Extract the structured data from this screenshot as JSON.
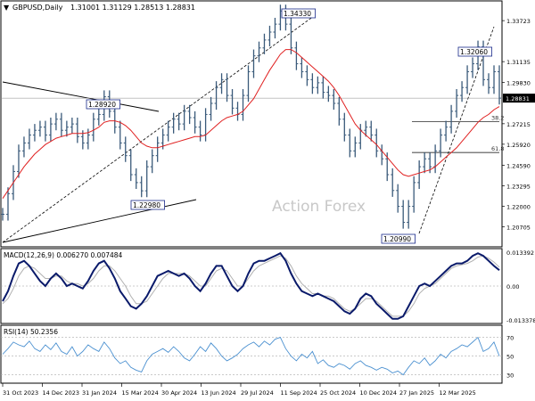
{
  "header": {
    "symbol": "GBPUSD,Daily",
    "ohlc": "1.31001 1.31129 1.28513 1.28831"
  },
  "watermark": "Action Forex",
  "chart_data": [
    {
      "type": "line",
      "panel": "price",
      "ylim": [
        1.195,
        1.348
      ],
      "y_ticks": [
        "1.33723",
        "1.31135",
        "1.29830",
        "1.27215",
        "1.25920",
        "1.24590",
        "1.23295",
        "1.22000",
        "1.20705"
      ],
      "y_tick_values": [
        1.33723,
        1.31135,
        1.2983,
        1.27215,
        1.2592,
        1.2459,
        1.23295,
        1.22,
        1.20705
      ],
      "x_ticks": [
        "31 Oct 2023",
        "14 Dec 2023",
        "31 Jan 2024",
        "15 Mar 2024",
        "30 Apr 2024",
        "13 Jun 2024",
        "29 Jul 2024",
        "11 Sep 2024",
        "25 Oct 2024",
        "10 Dec 2024",
        "27 Jan 2025",
        "12 Mar 2025"
      ],
      "close": [
        1.215,
        1.228,
        1.242,
        1.255,
        1.26,
        1.265,
        1.268,
        1.27,
        1.265,
        1.272,
        1.275,
        1.268,
        1.27,
        1.272,
        1.264,
        1.26,
        1.265,
        1.275,
        1.278,
        1.2892,
        1.28,
        1.27,
        1.26,
        1.252,
        1.24,
        1.235,
        1.2298,
        1.245,
        1.252,
        1.26,
        1.265,
        1.27,
        1.275,
        1.272,
        1.28,
        1.276,
        1.27,
        1.265,
        1.278,
        1.285,
        1.295,
        1.3,
        1.29,
        1.282,
        1.278,
        1.29,
        1.305,
        1.315,
        1.32,
        1.325,
        1.33,
        1.335,
        1.3433,
        1.335,
        1.32,
        1.31,
        1.305,
        1.3,
        1.295,
        1.298,
        1.292,
        1.29,
        1.285,
        1.275,
        1.265,
        1.255,
        1.26,
        1.268,
        1.27,
        1.265,
        1.255,
        1.25,
        1.24,
        1.23,
        1.22,
        1.2099,
        1.22,
        1.235,
        1.245,
        1.25,
        1.245,
        1.255,
        1.265,
        1.27,
        1.28,
        1.29,
        1.295,
        1.305,
        1.31,
        1.3206,
        1.3,
        1.295,
        1.305,
        1.2883
      ],
      "ma": [
        1.225,
        1.23,
        1.235,
        1.24,
        1.245,
        1.249,
        1.253,
        1.256,
        1.259,
        1.261,
        1.263,
        1.264,
        1.265,
        1.266,
        1.266,
        1.266,
        1.2665,
        1.268,
        1.27,
        1.273,
        1.274,
        1.274,
        1.273,
        1.271,
        1.268,
        1.264,
        1.26,
        1.258,
        1.257,
        1.257,
        1.258,
        1.259,
        1.26,
        1.261,
        1.262,
        1.263,
        1.264,
        1.264,
        1.265,
        1.268,
        1.271,
        1.274,
        1.276,
        1.277,
        1.278,
        1.28,
        1.284,
        1.288,
        1.294,
        1.3,
        1.306,
        1.311,
        1.316,
        1.319,
        1.319,
        1.317,
        1.314,
        1.311,
        1.308,
        1.305,
        1.302,
        1.299,
        1.295,
        1.29,
        1.284,
        1.278,
        1.272,
        1.268,
        1.265,
        1.262,
        1.259,
        1.255,
        1.251,
        1.247,
        1.243,
        1.24,
        1.239,
        1.24,
        1.241,
        1.242,
        1.243,
        1.245,
        1.248,
        1.251,
        1.254,
        1.257,
        1.261,
        1.265,
        1.269,
        1.273,
        1.276,
        1.278,
        1.281,
        1.283
      ],
      "annotations": [
        {
          "label": "1.34330",
          "value": 1.3433
        },
        {
          "label": "1.32060",
          "value": 1.3206
        },
        {
          "label": "1.28920",
          "value": 1.2892
        },
        {
          "label": "1.22980",
          "value": 1.2298
        },
        {
          "label": "1.20990",
          "value": 1.2099
        }
      ],
      "current_price_label": "1.28831",
      "current_price": 1.28831,
      "fib_levels": [
        {
          "label": "38.2",
          "value": 1.2735
        },
        {
          "label": "61.8",
          "value": 1.254
        }
      ]
    },
    {
      "type": "line",
      "panel": "macd",
      "title": "MACD(12,26,9) 0.006270 0.007484",
      "ylim": [
        -0.0145,
        0.0145
      ],
      "y_ticks": [
        "0.013392",
        "0.00",
        "-0.013378"
      ],
      "y_tick_values": [
        0.013392,
        0.0,
        -0.013378
      ],
      "macd": [
        -0.006,
        -0.002,
        0.004,
        0.009,
        0.01,
        0.008,
        0.005,
        0.002,
        0.0,
        0.003,
        0.005,
        0.003,
        0.0,
        0.001,
        0.0,
        -0.001,
        0.002,
        0.006,
        0.009,
        0.01,
        0.007,
        0.003,
        -0.002,
        -0.005,
        -0.008,
        -0.009,
        -0.007,
        -0.004,
        0.0,
        0.004,
        0.005,
        0.006,
        0.005,
        0.004,
        0.005,
        0.003,
        0.0,
        -0.002,
        0.001,
        0.005,
        0.008,
        0.008,
        0.004,
        0.0,
        -0.002,
        0.0,
        0.005,
        0.009,
        0.01,
        0.01,
        0.011,
        0.012,
        0.013,
        0.01,
        0.005,
        0.001,
        -0.002,
        -0.003,
        -0.004,
        -0.003,
        -0.004,
        -0.005,
        -0.006,
        -0.008,
        -0.01,
        -0.011,
        -0.009,
        -0.005,
        -0.003,
        -0.004,
        -0.007,
        -0.009,
        -0.011,
        -0.013,
        -0.013,
        -0.012,
        -0.008,
        -0.004,
        0.0,
        0.001,
        0.0,
        0.002,
        0.004,
        0.006,
        0.008,
        0.009,
        0.009,
        0.01,
        0.012,
        0.013,
        0.012,
        0.01,
        0.008,
        0.0063
      ],
      "signal": [
        -0.007,
        -0.005,
        -0.001,
        0.004,
        0.007,
        0.008,
        0.007,
        0.005,
        0.003,
        0.003,
        0.004,
        0.004,
        0.002,
        0.001,
        0.001,
        0.0,
        0.001,
        0.003,
        0.006,
        0.008,
        0.008,
        0.006,
        0.003,
        0.0,
        -0.004,
        -0.007,
        -0.007,
        -0.006,
        -0.003,
        0.0,
        0.003,
        0.005,
        0.005,
        0.005,
        0.005,
        0.004,
        0.002,
        0.0,
        0.0,
        0.003,
        0.006,
        0.007,
        0.006,
        0.003,
        0.0,
        0.0,
        0.003,
        0.006,
        0.008,
        0.009,
        0.01,
        0.011,
        0.012,
        0.011,
        0.008,
        0.004,
        0.001,
        -0.001,
        -0.003,
        -0.003,
        -0.004,
        -0.004,
        -0.005,
        -0.007,
        -0.009,
        -0.01,
        -0.009,
        -0.007,
        -0.005,
        -0.005,
        -0.006,
        -0.008,
        -0.01,
        -0.012,
        -0.012,
        -0.012,
        -0.01,
        -0.007,
        -0.003,
        -0.001,
        0.0,
        0.001,
        0.003,
        0.005,
        0.007,
        0.008,
        0.0085,
        0.009,
        0.01,
        0.0115,
        0.012,
        0.011,
        0.0095,
        0.0075
      ]
    },
    {
      "type": "line",
      "panel": "rsi",
      "title": "RSI(14) 50.2356",
      "ylim": [
        22,
        82
      ],
      "y_ticks": [
        "70",
        "50",
        "30"
      ],
      "y_tick_values": [
        70,
        50,
        30
      ],
      "rsi": [
        52,
        58,
        65,
        62,
        60,
        66,
        58,
        55,
        62,
        57,
        64,
        55,
        52,
        60,
        50,
        55,
        62,
        58,
        55,
        65,
        58,
        48,
        42,
        45,
        38,
        35,
        33,
        45,
        52,
        55,
        58,
        54,
        60,
        55,
        48,
        45,
        52,
        60,
        55,
        64,
        58,
        50,
        45,
        48,
        52,
        58,
        62,
        65,
        60,
        66,
        62,
        68,
        70,
        58,
        50,
        45,
        52,
        48,
        55,
        42,
        46,
        40,
        38,
        42,
        40,
        36,
        42,
        45,
        40,
        38,
        35,
        38,
        36,
        32,
        34,
        30,
        38,
        45,
        42,
        48,
        40,
        45,
        52,
        48,
        55,
        58,
        62,
        60,
        65,
        70,
        55,
        58,
        65,
        50
      ]
    }
  ]
}
